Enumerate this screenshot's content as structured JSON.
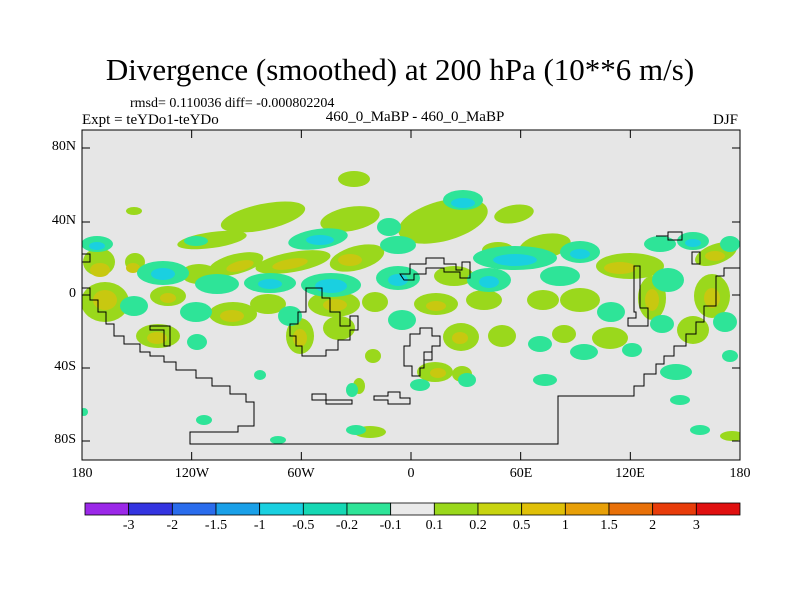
{
  "title": "Divergence (smoothed) at 200 hPa (10**6 m/s)",
  "stats": "rmsd= 0.110036 diff= -0.000802204",
  "experiment": "Expt = teYDo1-teYDo",
  "cases": "460_0_MaBP - 460_0_MaBP",
  "season": "DJF",
  "lat_labels": [
    "80N",
    "40N",
    "0",
    "40S",
    "80S"
  ],
  "lon_labels": [
    "180",
    "120W",
    "60W",
    "0",
    "60E",
    "120E",
    "180"
  ],
  "colorbar": {
    "labels": [
      "-3",
      "-2",
      "-1.5",
      "-1",
      "-0.5",
      "-0.2",
      "-0.1",
      "0.1",
      "0.2",
      "0.5",
      "1",
      "1.5",
      "2",
      "3"
    ],
    "colors": [
      "#9b28e8",
      "#3434e0",
      "#2a6cec",
      "#1aa0e8",
      "#1ad0e0",
      "#16d8b4",
      "#2ee498",
      "#eaeaea",
      "#9ad81c",
      "#c8d410",
      "#e0c008",
      "#e8a008",
      "#e87008",
      "#e83c0a",
      "#e01010"
    ]
  },
  "colors": {
    "background": "#e6e6e6",
    "pos_light": "#9ad81c",
    "pos_mid": "#c8c810",
    "neg_light": "#2ee498",
    "neg_mid": "#1ad0e0"
  }
}
